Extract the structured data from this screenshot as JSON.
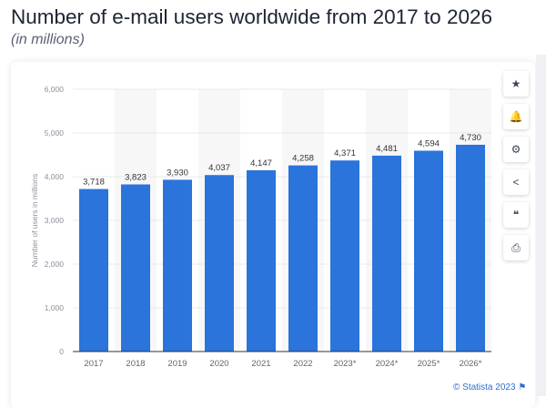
{
  "header": {
    "title": "Number of e-mail users worldwide from 2017 to 2026",
    "subtitle": "(in millions)"
  },
  "chart_data": {
    "type": "bar",
    "categories": [
      "2017",
      "2018",
      "2019",
      "2020",
      "2021",
      "2022",
      "2023*",
      "2024*",
      "2025*",
      "2026*"
    ],
    "values": [
      3718,
      3823,
      3930,
      4037,
      4147,
      4258,
      4371,
      4481,
      4594,
      4730
    ],
    "data_labels": [
      "3,718",
      "3,823",
      "3,930",
      "4,037",
      "4,147",
      "4,258",
      "4,371",
      "4,481",
      "4,594",
      "4,730"
    ],
    "title": "Number of e-mail users worldwide from 2017 to 2026",
    "xlabel": "",
    "ylabel": "Number of users in millions",
    "ylim": [
      0,
      6000
    ],
    "yticks": [
      0,
      1000,
      2000,
      3000,
      4000,
      5000,
      6000
    ],
    "ytick_labels": [
      "0",
      "1,000",
      "2,000",
      "3,000",
      "4,000",
      "5,000",
      "6,000"
    ],
    "grid": true,
    "bar_color": "#2a74dc"
  },
  "tools": [
    {
      "icon": "star-icon",
      "glyph": "★"
    },
    {
      "icon": "bell-icon",
      "glyph": "🔔"
    },
    {
      "icon": "gear-icon",
      "glyph": "⚙"
    },
    {
      "icon": "share-icon",
      "glyph": "<"
    },
    {
      "icon": "quote-icon",
      "glyph": "❝"
    },
    {
      "icon": "print-icon",
      "glyph": "⎙"
    }
  ],
  "footer": {
    "credit": "© Statista 2023",
    "flag_icon": "flag-icon"
  }
}
